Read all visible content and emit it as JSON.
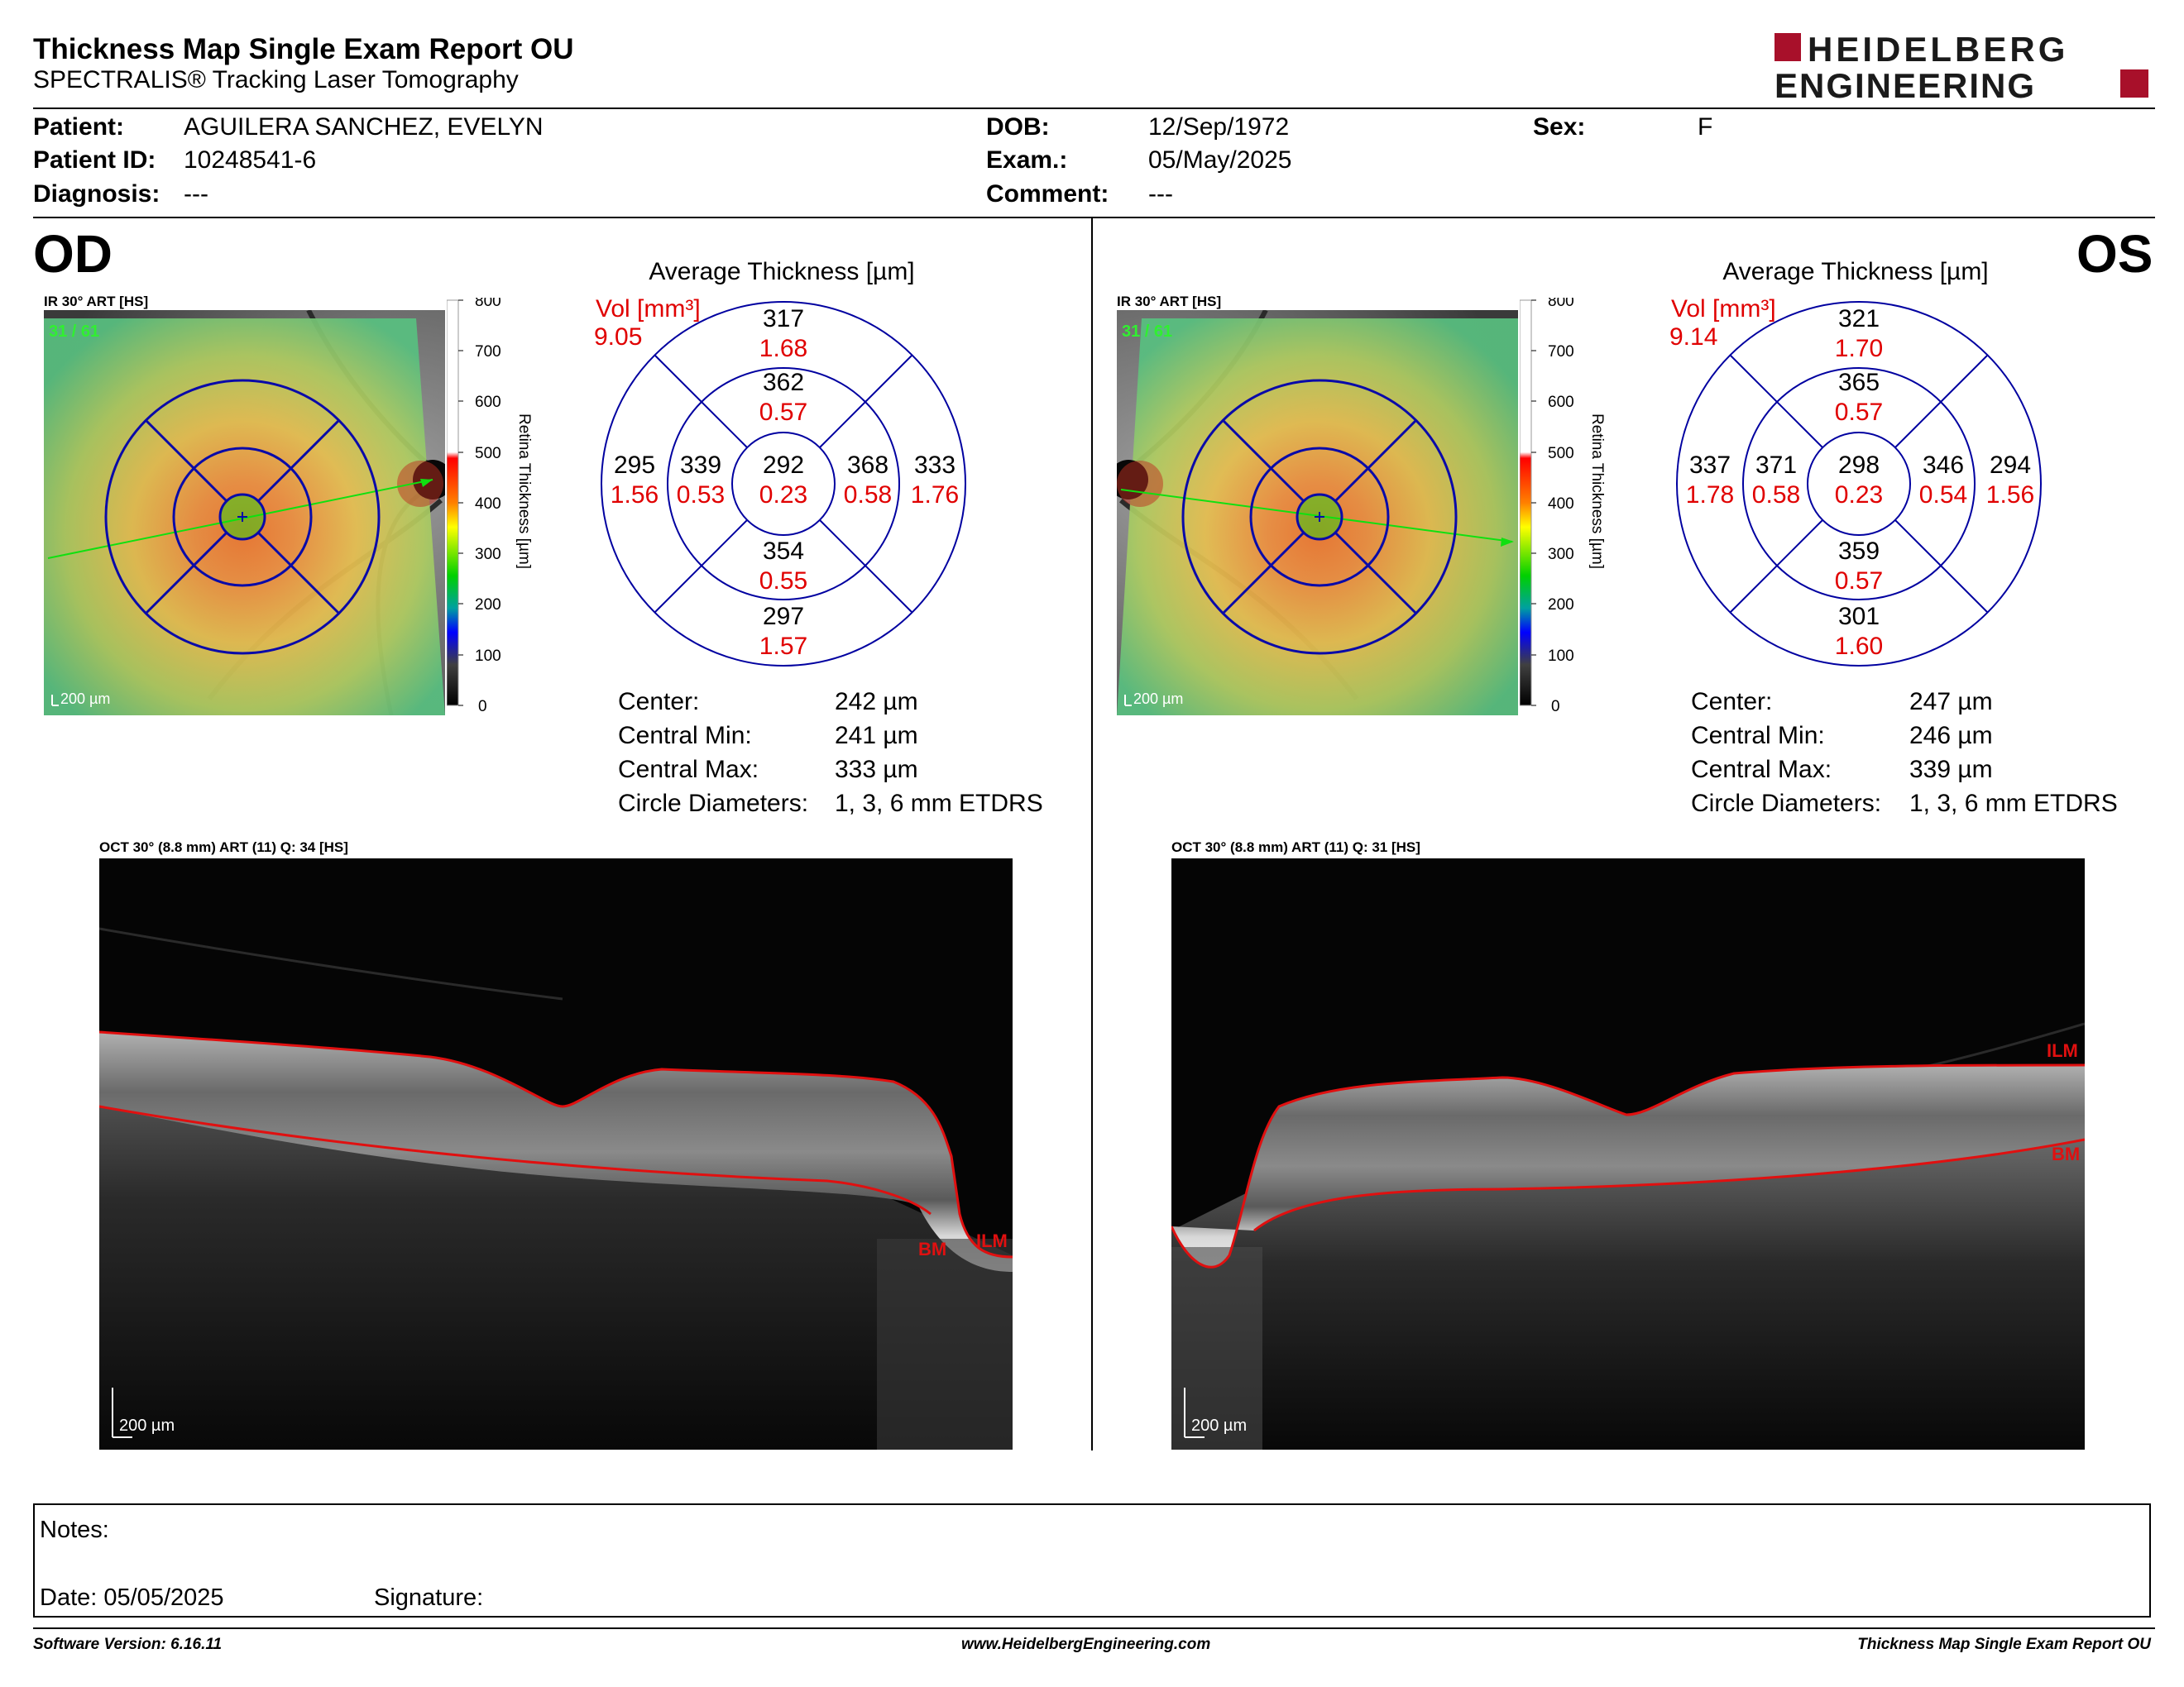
{
  "header": {
    "title": "Thickness Map Single Exam Report OU",
    "subtitle": "SPECTRALIS® Tracking Laser Tomography",
    "logo_line1": "HEIDELBERG",
    "logo_line2": "ENGINEERING"
  },
  "patient": {
    "patient_label": "Patient:",
    "patient_value": "AGUILERA SANCHEZ, EVELYN",
    "id_label": "Patient ID:",
    "id_value": "10248541-6",
    "diagnosis_label": "Diagnosis:",
    "diagnosis_value": "---",
    "dob_label": "DOB:",
    "dob_value": "12/Sep/1972",
    "exam_label": "Exam.:",
    "exam_value": "05/May/2025",
    "comment_label": "Comment:",
    "comment_value": "---",
    "sex_label": "Sex:",
    "sex_value": "F"
  },
  "od": {
    "eye": "OD",
    "ir_header": "IR 30° ART [HS]",
    "ir_counter": "31 / 61",
    "ir_scale": "200 µm",
    "avg_title": "Average Thickness [µm]",
    "vol_label": "Vol [mm³]",
    "vol_value": "9.05",
    "sectors": {
      "outer_top": {
        "t": "317",
        "v": "1.68"
      },
      "inner_top": {
        "t": "362",
        "v": "0.57"
      },
      "outer_left": {
        "t": "295",
        "v": "1.56"
      },
      "inner_left": {
        "t": "339",
        "v": "0.53"
      },
      "center": {
        "t": "292",
        "v": "0.23"
      },
      "inner_right": {
        "t": "368",
        "v": "0.58"
      },
      "outer_right": {
        "t": "333",
        "v": "1.76"
      },
      "inner_bottom": {
        "t": "354",
        "v": "0.55"
      },
      "outer_bottom": {
        "t": "297",
        "v": "1.57"
      }
    },
    "stats": {
      "center_label": "Center:",
      "center_value": "242 µm",
      "min_label": "Central Min:",
      "min_value": "241 µm",
      "max_label": "Central Max:",
      "max_value": "333 µm",
      "diam_label": "Circle Diameters:",
      "diam_value": "1, 3, 6 mm ETDRS"
    },
    "oct_header": "OCT 30° (8.8 mm) ART (11) Q: 34 [HS]",
    "oct_scale": "200 µm",
    "label_ilm": "ILM",
    "label_bm": "BM"
  },
  "os": {
    "eye": "OS",
    "ir_header": "IR 30° ART [HS]",
    "ir_counter": "31 / 61",
    "ir_scale": "200 µm",
    "avg_title": "Average Thickness [µm]",
    "vol_label": "Vol [mm³]",
    "vol_value": "9.14",
    "sectors": {
      "outer_top": {
        "t": "321",
        "v": "1.70"
      },
      "inner_top": {
        "t": "365",
        "v": "0.57"
      },
      "outer_left": {
        "t": "337",
        "v": "1.78"
      },
      "inner_left": {
        "t": "371",
        "v": "0.58"
      },
      "center": {
        "t": "298",
        "v": "0.23"
      },
      "inner_right": {
        "t": "346",
        "v": "0.54"
      },
      "outer_right": {
        "t": "294",
        "v": "1.56"
      },
      "inner_bottom": {
        "t": "359",
        "v": "0.57"
      },
      "outer_bottom": {
        "t": "301",
        "v": "1.60"
      }
    },
    "stats": {
      "center_label": "Center:",
      "center_value": "247 µm",
      "min_label": "Central Min:",
      "min_value": "246 µm",
      "max_label": "Central Max:",
      "max_value": "339 µm",
      "diam_label": "Circle Diameters:",
      "diam_value": "1, 3, 6 mm ETDRS"
    },
    "oct_header": "OCT 30° (8.8 mm) ART (11) Q: 31 [HS]",
    "oct_scale": "200 µm",
    "label_ilm": "ILM",
    "label_bm": "BM"
  },
  "colorbar": {
    "ticks": [
      "800",
      "700",
      "600",
      "500",
      "400",
      "300",
      "200",
      "100",
      "0"
    ],
    "title": "Retina Thickness [µm]"
  },
  "notes": {
    "notes_label": "Notes:",
    "date_label": "Date: 05/05/2025",
    "signature_label": "Signature:"
  },
  "footer": {
    "left": "Software Version: 6.16.11",
    "center": "www.HeidelbergEngineering.com",
    "right": "Thickness Map Single Exam Report OU"
  },
  "colors": {
    "etdrs_grid": "#0000a0",
    "volume_red": "#e00000",
    "segmentation_red": "#e01010",
    "brand_red": "#a8102a"
  }
}
